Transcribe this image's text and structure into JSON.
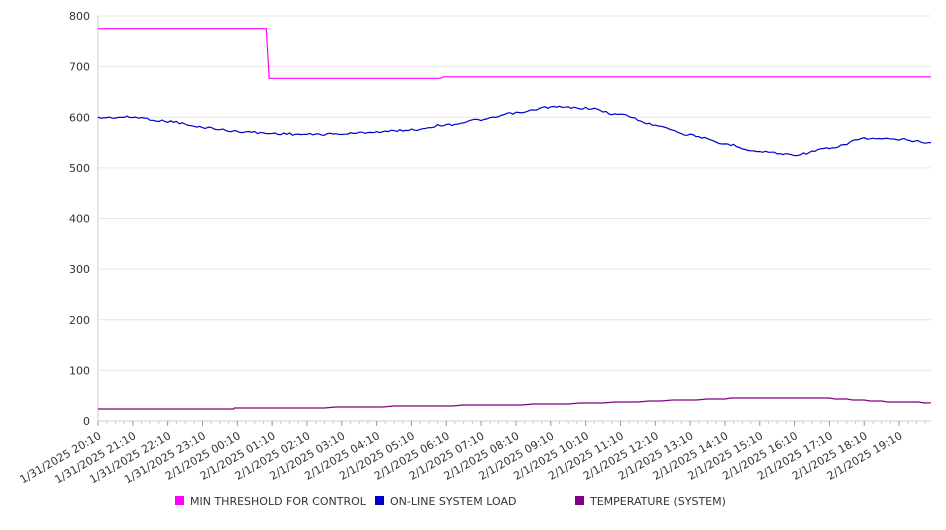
{
  "chart_data": {
    "type": "line",
    "title": "",
    "xlabel": "",
    "ylabel": "",
    "ylim": [
      0,
      800
    ],
    "y_ticks": [
      0,
      100,
      200,
      300,
      400,
      500,
      600,
      700,
      800
    ],
    "x_tick_labels": [
      "1/31/2025 20:10",
      "1/31/2025 21:10",
      "1/31/2025 22:10",
      "1/31/2025 23:10",
      "2/1/2025 00:10",
      "2/1/2025 01:10",
      "2/1/2025 02:10",
      "2/1/2025 03:10",
      "2/1/2025 04:10",
      "2/1/2025 05:10",
      "2/1/2025 06:10",
      "2/1/2025 07:10",
      "2/1/2025 08:10",
      "2/1/2025 09:10",
      "2/1/2025 10:10",
      "2/1/2025 11:10",
      "2/1/2025 12:10",
      "2/1/2025 13:10",
      "2/1/2025 14:10",
      "2/1/2025 15:10",
      "2/1/2025 16:10",
      "2/1/2025 17:10",
      "2/1/2025 18:10",
      "2/1/2025 19:10"
    ],
    "x_min": "1/31/2025 20:10",
    "x_max": "2/1/2025 20:05",
    "grid": "horizontal",
    "legend_position": "bottom",
    "series": [
      {
        "name": "MIN THRESHOLD FOR CONTROL",
        "color": "#ff00ff",
        "points": [
          [
            "1/31/2025 20:10",
            775
          ],
          [
            "2/1/2025 01:00",
            775
          ],
          [
            "2/1/2025 01:05",
            677
          ],
          [
            "2/1/2025 06:00",
            677
          ],
          [
            "2/1/2025 06:05",
            680
          ],
          [
            "2/1/2025 20:05",
            680
          ]
        ]
      },
      {
        "name": "ON-LINE SYSTEM LOAD",
        "color": "#0000cc",
        "points": [
          [
            "1/31/2025 20:10",
            599
          ],
          [
            "1/31/2025 21:10",
            600
          ],
          [
            "1/31/2025 22:10",
            592
          ],
          [
            "1/31/2025 23:10",
            580
          ],
          [
            "2/1/2025 00:10",
            572
          ],
          [
            "2/1/2025 01:10",
            568
          ],
          [
            "2/1/2025 02:10",
            566
          ],
          [
            "2/1/2025 03:10",
            567
          ],
          [
            "2/1/2025 04:10",
            571
          ],
          [
            "2/1/2025 05:10",
            575
          ],
          [
            "2/1/2025 06:10",
            585
          ],
          [
            "2/1/2025 07:10",
            595
          ],
          [
            "2/1/2025 08:10",
            608
          ],
          [
            "2/1/2025 09:10",
            620
          ],
          [
            "2/1/2025 10:10",
            618
          ],
          [
            "2/1/2025 11:10",
            605
          ],
          [
            "2/1/2025 12:10",
            585
          ],
          [
            "2/1/2025 13:10",
            565
          ],
          [
            "2/1/2025 14:10",
            547
          ],
          [
            "2/1/2025 15:10",
            532
          ],
          [
            "2/1/2025 16:10",
            526
          ],
          [
            "2/1/2025 17:10",
            538
          ],
          [
            "2/1/2025 18:10",
            558
          ],
          [
            "2/1/2025 19:10",
            556
          ],
          [
            "2/1/2025 20:05",
            550
          ]
        ]
      },
      {
        "name": "TEMPERATURE (SYSTEM)",
        "color": "#800080",
        "points": [
          [
            "1/31/2025 20:10",
            23
          ],
          [
            "2/1/2025 00:00",
            23
          ],
          [
            "2/1/2025 00:05",
            25
          ],
          [
            "2/1/2025 02:00",
            26
          ],
          [
            "2/1/2025 04:00",
            28
          ],
          [
            "2/1/2025 06:00",
            30
          ],
          [
            "2/1/2025 08:00",
            32
          ],
          [
            "2/1/2025 10:00",
            35
          ],
          [
            "2/1/2025 12:00",
            39
          ],
          [
            "2/1/2025 14:00",
            44
          ],
          [
            "2/1/2025 15:00",
            46
          ],
          [
            "2/1/2025 17:00",
            46
          ],
          [
            "2/1/2025 18:00",
            41
          ],
          [
            "2/1/2025 19:00",
            38
          ],
          [
            "2/1/2025 20:05",
            36
          ]
        ]
      }
    ]
  }
}
